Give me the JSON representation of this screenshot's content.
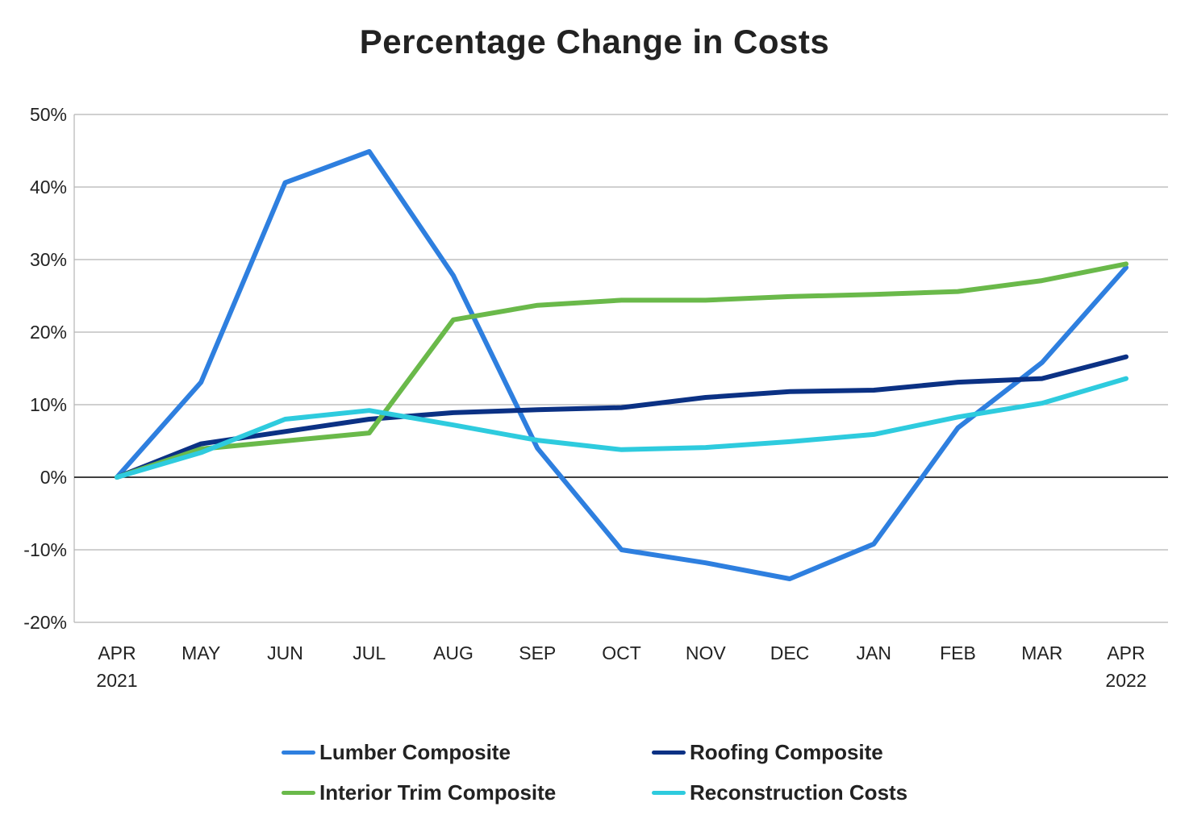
{
  "chart_data": {
    "type": "line",
    "title": "Percentage Change in Costs",
    "xlabel": "",
    "ylabel": "",
    "categories": [
      [
        "APR",
        "2021"
      ],
      [
        "MAY"
      ],
      [
        "JUN"
      ],
      [
        "JUL"
      ],
      [
        "AUG"
      ],
      [
        "SEP"
      ],
      [
        "OCT"
      ],
      [
        "NOV"
      ],
      [
        "DEC"
      ],
      [
        "JAN"
      ],
      [
        "FEB"
      ],
      [
        "MAR"
      ],
      [
        "APR",
        "2022"
      ]
    ],
    "ylim": [
      -20,
      50
    ],
    "yticks": [
      -20,
      -10,
      0,
      10,
      20,
      30,
      40,
      50
    ],
    "ytick_labels": [
      "-20%",
      "-10%",
      "0%",
      "10%",
      "20%",
      "30%",
      "40%",
      "50%"
    ],
    "grid": "horizontal",
    "legend_placement": "bottom",
    "series": [
      {
        "name": "Lumber Composite",
        "color": "#2e7fdf",
        "values": [
          0,
          13.1,
          40.6,
          44.9,
          27.8,
          4.0,
          -10.0,
          -11.8,
          -14.0,
          -9.2,
          6.8,
          15.8,
          28.9
        ]
      },
      {
        "name": "Roofing Composite",
        "color": "#0b3184",
        "values": [
          0,
          4.6,
          6.3,
          8.0,
          8.9,
          9.3,
          9.6,
          11.0,
          11.8,
          12.0,
          13.1,
          13.6,
          16.6
        ]
      },
      {
        "name": "Interior Trim Composite",
        "color": "#6ab94a",
        "values": [
          0,
          3.9,
          5.0,
          6.1,
          21.7,
          23.7,
          24.4,
          24.4,
          24.9,
          25.2,
          25.6,
          27.1,
          29.4
        ]
      },
      {
        "name": "Reconstruction Costs",
        "color": "#2ecbde",
        "values": [
          0,
          3.4,
          8.0,
          9.2,
          7.2,
          5.1,
          3.8,
          4.1,
          4.9,
          5.9,
          8.3,
          10.2,
          13.6
        ]
      }
    ]
  }
}
